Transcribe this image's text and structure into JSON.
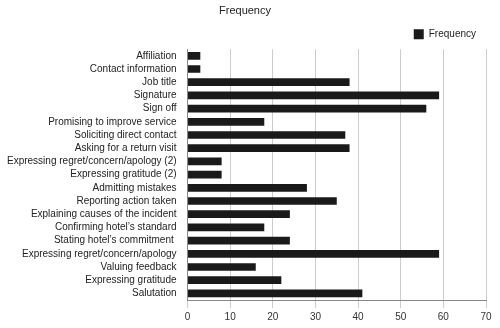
{
  "chart_data": {
    "type": "bar",
    "title": "Frequency",
    "orientation": "horizontal",
    "categories": [
      "Affiliation",
      "Contact information",
      "Job title",
      "Signature",
      "Sign off",
      "Promising to improve service",
      "Soliciting direct contact",
      "Asking for a return visit",
      "Expressing regret/concern/apology (2)",
      "Expressing gratitude (2)",
      "Admitting mistakes",
      "Reporting action taken",
      "Explaining causes of the incident",
      "Confirming hotel’s standard",
      "Stating hotel’s commitment ",
      "Expressing regret/concern/apology",
      "Valuing feedback",
      "Expressing gratitude",
      "Salutation"
    ],
    "series": [
      {
        "name": "Frequency",
        "color": "#1a1a1a",
        "values": [
          3,
          3,
          38,
          59,
          56,
          18,
          37,
          38,
          8,
          8,
          28,
          35,
          24,
          18,
          24,
          59,
          16,
          22,
          41
        ]
      }
    ],
    "xlim": [
      0,
      70
    ],
    "xticks": [
      0,
      10,
      20,
      30,
      40,
      50,
      60,
      70
    ],
    "grid": true,
    "legend": "top right"
  }
}
